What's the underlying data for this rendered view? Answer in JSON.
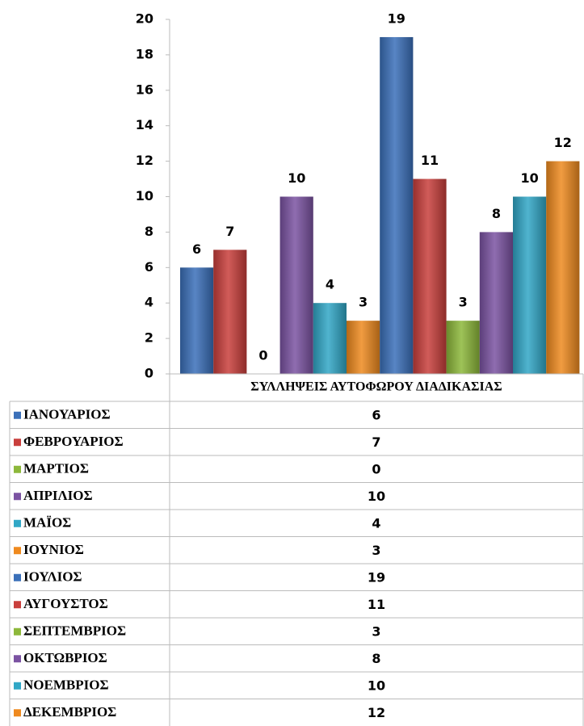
{
  "chart_data": {
    "type": "bar",
    "categories": [
      "ΣΥΛΛΗΨΕΙΣ ΑΥΤΟΦΩΡΟΥ ΔΙΑΔΙΚΑΣΙΑΣ"
    ],
    "series": [
      {
        "name": "ΙΑΝΟΥΑΡΙΟΣ",
        "color": "#3b70b9",
        "values": [
          6
        ]
      },
      {
        "name": "ΦΕΒΡΟΥΑΡΙΟΣ",
        "color": "#c93f3c",
        "values": [
          7
        ]
      },
      {
        "name": "ΜΑΡΤΙΟΣ",
        "color": "#8db83b",
        "values": [
          0
        ]
      },
      {
        "name": "ΑΠΡΙΛΙΟΣ",
        "color": "#7b53a2",
        "values": [
          10
        ]
      },
      {
        "name": "ΜΑΪΟΣ",
        "color": "#31a7c6",
        "values": [
          4
        ]
      },
      {
        "name": "ΙΟΥΝΙΟΣ",
        "color": "#ef8a1f",
        "values": [
          3
        ]
      },
      {
        "name": "ΙΟΥΛΙΟΣ",
        "color": "#3b70b9",
        "values": [
          19
        ]
      },
      {
        "name": "ΑΥΓΟΥΣΤΟΣ",
        "color": "#c93f3c",
        "values": [
          11
        ]
      },
      {
        "name": "ΣΕΠΤΕΜΒΡΙΟΣ",
        "color": "#8db83b",
        "values": [
          3
        ]
      },
      {
        "name": "ΟΚΤΩΒΡΙΟΣ",
        "color": "#7b53a2",
        "values": [
          8
        ]
      },
      {
        "name": "ΝΟΕΜΒΡΙΟΣ",
        "color": "#31a7c6",
        "values": [
          10
        ]
      },
      {
        "name": "ΔΕΚΕΜΒΡΙΟΣ",
        "color": "#ef8a1f",
        "values": [
          12
        ]
      }
    ],
    "ylim": [
      0,
      20
    ],
    "yticks": [
      0,
      2,
      4,
      6,
      8,
      10,
      12,
      14,
      16,
      18,
      20
    ],
    "data_table": true
  }
}
